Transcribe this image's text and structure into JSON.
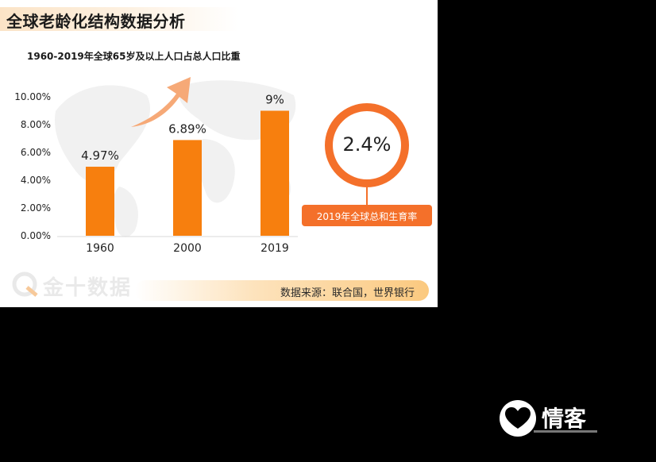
{
  "page": {
    "title": "全球老龄化结构数据分析",
    "source": "数据来源：联合国，世界银行",
    "logo": "金十数据",
    "watermark": "情客"
  },
  "fertility": {
    "value": "2.4%",
    "label": "2019年全球总和生育率"
  },
  "chart_data": {
    "type": "bar",
    "title": "1960-2019年全球65岁及以上人口占总人口比重",
    "categories": [
      "1960",
      "2000",
      "2019"
    ],
    "values": [
      4.97,
      6.89,
      9
    ],
    "value_labels": [
      "4.97%",
      "6.89%",
      "9%"
    ],
    "y_ticks": [
      "0.00%",
      "2.00%",
      "4.00%",
      "6.00%",
      "8.00%",
      "10.00%"
    ],
    "ylim": [
      0,
      10
    ],
    "xlabel": "",
    "ylabel": "",
    "grid": false,
    "bar_color": "#f77f0e"
  },
  "colors": {
    "accent": "#f4702a",
    "bar": "#f77f0e",
    "arrow": "#f6a977"
  }
}
